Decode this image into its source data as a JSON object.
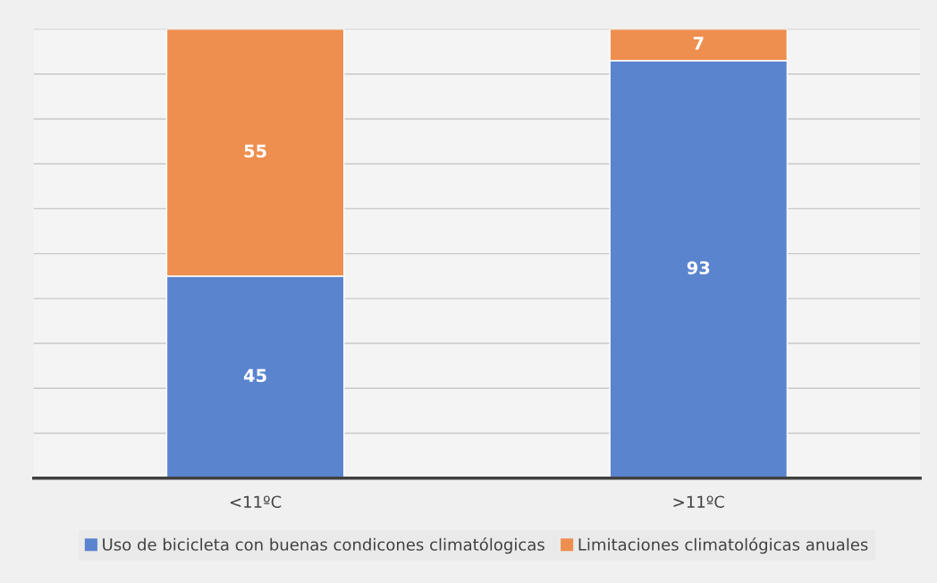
{
  "chart_data": {
    "type": "bar",
    "stacked": true,
    "categories": [
      "<11ºC",
      ">11ºC"
    ],
    "series": [
      {
        "name": "Uso de bicicleta con buenas condicones climatólogicas",
        "color": "#5b84cf",
        "values": [
          45,
          93
        ]
      },
      {
        "name": "Limitaciones climatológicas anuales",
        "color": "#ee8f4f",
        "values": [
          55,
          7
        ]
      }
    ],
    "ylim": [
      0,
      100
    ],
    "yticks": [
      {
        "value": 0,
        "label": null
      },
      {
        "value": 10,
        "label": null
      },
      {
        "value": 20,
        "label": null
      },
      {
        "value": 30,
        "label": null
      },
      {
        "value": 40,
        "label": null
      },
      {
        "value": 50,
        "label": null
      },
      {
        "value": 60,
        "label": null
      },
      {
        "value": 70,
        "label": null
      },
      {
        "value": 80,
        "label": null
      },
      {
        "value": 90,
        "label": null
      },
      {
        "value": 100,
        "label": null
      }
    ],
    "tick_labels": "x",
    "grid": "y",
    "data_labels": true,
    "legend": "bottom"
  }
}
